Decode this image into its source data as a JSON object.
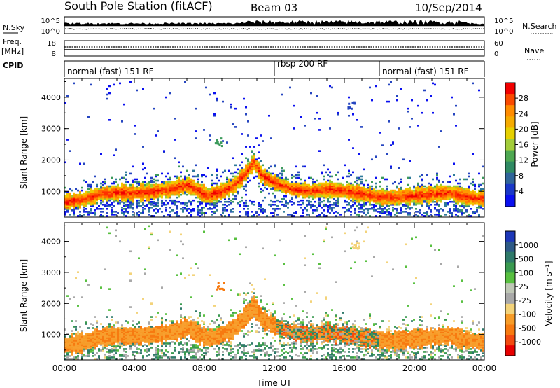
{
  "header": {
    "station": "South Pole Station (fitACF)",
    "beam": "Beam 03",
    "date": "10/Sep/2014"
  },
  "noise_panel": {
    "left_label": "N.Sky",
    "left_ticks": [
      "10^5",
      "10^0"
    ],
    "right_label": "N.Search",
    "right_ticks": [
      "10^5",
      "10^0"
    ]
  },
  "freq_panel": {
    "left_label_1": "Freq.",
    "left_label_2": "[MHz]",
    "left_ticks": [
      "18",
      "8"
    ],
    "right_label": "Nave",
    "right_ticks": [
      "60",
      "0"
    ]
  },
  "cpid_panel": {
    "label": "CPID",
    "segments": [
      {
        "label": "normal (fast) 151 RF",
        "start_hour": 0
      },
      {
        "label": "rbsp 200 RF",
        "start_hour": 12
      },
      {
        "label": "normal (fast) 151 RF",
        "start_hour": 18
      }
    ]
  },
  "colorbars": {
    "power": {
      "title": "Power [dB]",
      "ticks": [
        "28",
        "24",
        "20",
        "16",
        "12",
        "8",
        "4"
      ],
      "colors": [
        "#f20000",
        "#fa4a00",
        "#ff8c00",
        "#f5ab00",
        "#e6d000",
        "#a3cd3a",
        "#4ea852",
        "#2f8a63",
        "#30659a",
        "#1a38c8",
        "#0a10f0"
      ]
    },
    "velocity": {
      "title": "Velocity [m s⁻¹]",
      "ticks": [
        "1000",
        "500",
        "100",
        "25",
        "-25",
        "-100",
        "-500",
        "-1000"
      ],
      "colors": [
        "#1d37b8",
        "#2e5a86",
        "#2f7a6a",
        "#3a9a50",
        "#58c040",
        "#bfc7b6",
        "#a8a8a8",
        "#f3d37a",
        "#f79c28",
        "#f77a10",
        "#f24a10",
        "#e80000"
      ]
    }
  },
  "chart_data": [
    {
      "type": "heatmap",
      "panel": "power",
      "ylabel": "Slant Range [km]",
      "ylim": [
        180,
        4600
      ],
      "yticks": [
        "4000",
        "3000",
        "2000",
        "1000"
      ],
      "xlim_hours": [
        0,
        24
      ],
      "main_band_center_km": [
        [
          0,
          650
        ],
        [
          1,
          720
        ],
        [
          2,
          900
        ],
        [
          3,
          950
        ],
        [
          4,
          930
        ],
        [
          5,
          980
        ],
        [
          6,
          1050
        ],
        [
          7,
          1200
        ],
        [
          7.6,
          1000
        ],
        [
          8.2,
          850
        ],
        [
          9.0,
          1000
        ],
        [
          9.6,
          1150
        ],
        [
          10.2,
          1500
        ],
        [
          10.8,
          1900
        ],
        [
          11.2,
          1500
        ],
        [
          12,
          1250
        ],
        [
          13,
          1050
        ],
        [
          14,
          1000
        ],
        [
          15,
          1050
        ],
        [
          16,
          1000
        ],
        [
          17,
          900
        ],
        [
          18,
          800
        ],
        [
          19,
          800
        ],
        [
          20,
          850
        ],
        [
          21,
          900
        ],
        [
          22,
          950
        ],
        [
          23,
          800
        ],
        [
          24,
          750
        ]
      ],
      "patches": [
        {
          "hour": 8.8,
          "range_km": 2600
        },
        {
          "hour": 16.4,
          "range_km": 3800
        }
      ]
    },
    {
      "type": "heatmap",
      "panel": "velocity",
      "ylabel": "Slant Range [km]",
      "ylim": [
        180,
        4600
      ],
      "yticks": [
        "4000",
        "3000",
        "2000",
        "1000"
      ],
      "xlabel": "Time UT",
      "xticks": [
        "00:00",
        "04:00",
        "08:00",
        "12:00",
        "16:00",
        "20:00",
        "00:00"
      ],
      "xlim_hours": [
        0,
        24
      ],
      "patches": [
        {
          "hour": 8.9,
          "range_km": 2550
        },
        {
          "hour": 16.6,
          "range_km": 3850
        }
      ]
    }
  ]
}
